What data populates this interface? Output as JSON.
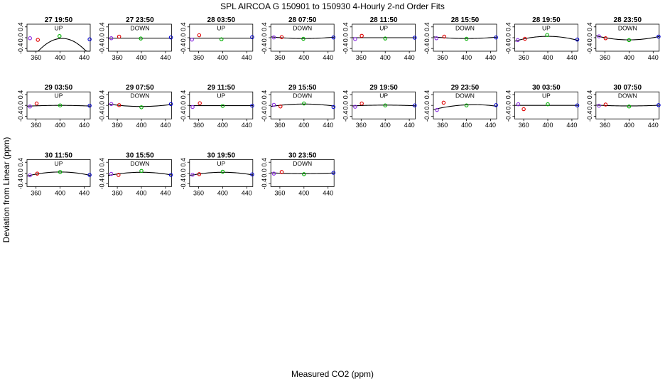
{
  "chart_data": {
    "type": "scatter",
    "title": "SPL   AIRCOA G   150901 to 150930   4-Hourly 2-nd Order Fits",
    "xlabel": "Measured CO2 (ppm)",
    "ylabel": "Deviation from Linear (ppm)",
    "xlim": [
      345,
      450
    ],
    "ylim": [
      -0.5,
      0.5
    ],
    "x_ticks": [
      360,
      400,
      440
    ],
    "y_ticks": [
      -0.4,
      0.0,
      0.4
    ],
    "y_tick_labels": [
      "-0.4",
      "0.0",
      "0.4"
    ],
    "marker_colors": [
      "#8a2be2",
      "#e00000",
      "#00b000",
      "#0000d0"
    ],
    "panels": [
      {
        "title": "27 19:50",
        "direction": "UP",
        "x": [
          350,
          363,
          399,
          449
        ],
        "y": [
          -0.02,
          -0.08,
          0.06,
          -0.06
        ],
        "fit": [
          -0.03,
          0.002,
          -0.0003
        ]
      },
      {
        "title": "27 23:50",
        "direction": "DOWN",
        "x": [
          350,
          363,
          399,
          449
        ],
        "y": [
          -0.02,
          0.04,
          -0.03,
          0.01
        ],
        "fit": [
          -0.02,
          0.0,
          0.0
        ]
      },
      {
        "title": "28 03:50",
        "direction": "UP",
        "x": [
          349,
          361,
          398,
          449
        ],
        "y": [
          -0.07,
          0.09,
          -0.06,
          0.02
        ],
        "fit": [
          -0.02,
          0.0,
          0.0
        ]
      },
      {
        "title": "28 07:50",
        "direction": "DOWN",
        "x": [
          350,
          363,
          399,
          449
        ],
        "y": [
          0.01,
          0.02,
          -0.04,
          0.01
        ],
        "fit": [
          -0.03,
          0.0,
          2e-05
        ]
      },
      {
        "title": "28 11:50",
        "direction": "UP",
        "x": [
          350,
          361,
          400,
          449
        ],
        "y": [
          -0.05,
          0.07,
          -0.03,
          0.0
        ],
        "fit": [
          0.0,
          0.0,
          0.0
        ]
      },
      {
        "title": "28 15:50",
        "direction": "DOWN",
        "x": [
          350,
          363,
          400,
          449
        ],
        "y": [
          -0.02,
          0.04,
          -0.04,
          0.01
        ],
        "fit": [
          -0.03,
          0.0,
          2e-05
        ]
      },
      {
        "title": "28 19:50",
        "direction": "UP",
        "x": [
          350,
          362,
          399,
          449
        ],
        "y": [
          -0.09,
          -0.04,
          0.1,
          -0.07
        ],
        "fit": [
          0.05,
          0.0,
          -6e-05
        ]
      },
      {
        "title": "28 23:50",
        "direction": "DOWN",
        "x": [
          350,
          361,
          400,
          449
        ],
        "y": [
          0.05,
          -0.02,
          -0.09,
          0.04
        ],
        "fit": [
          -0.08,
          0.0,
          5e-05
        ]
      },
      {
        "title": "29 03:50",
        "direction": "UP",
        "x": [
          350,
          361,
          400,
          449
        ],
        "y": [
          -0.04,
          0.07,
          0.0,
          -0.01
        ],
        "fit": [
          0.0,
          0.0,
          -1e-05
        ]
      },
      {
        "title": "29 07:50",
        "direction": "DOWN",
        "x": [
          350,
          363,
          400,
          449
        ],
        "y": [
          0.05,
          0.01,
          -0.07,
          0.05
        ],
        "fit": [
          -0.04,
          0.0,
          3e-05
        ]
      },
      {
        "title": "29 11:50",
        "direction": "UP",
        "x": [
          350,
          362,
          400,
          449
        ],
        "y": [
          -0.06,
          0.08,
          -0.02,
          -0.01
        ],
        "fit": [
          -0.01,
          0.0,
          0.0
        ]
      },
      {
        "title": "29 15:50",
        "direction": "DOWN",
        "x": [
          350,
          361,
          400,
          449
        ],
        "y": [
          0.02,
          -0.04,
          0.07,
          -0.06
        ],
        "fit": [
          0.05,
          0.0,
          -3e-05
        ]
      },
      {
        "title": "29 19:50",
        "direction": "UP",
        "x": [
          350,
          361,
          400,
          449
        ],
        "y": [
          -0.05,
          0.07,
          0.0,
          0.0
        ],
        "fit": [
          0.01,
          0.0,
          -1e-05
        ]
      },
      {
        "title": "29 23:50",
        "direction": "DOWN",
        "x": [
          351,
          362,
          400,
          449
        ],
        "y": [
          -0.17,
          0.1,
          0.0,
          0.01
        ],
        "fit": [
          0.02,
          0.001,
          -4e-05
        ]
      },
      {
        "title": "30 03:50",
        "direction": "UP",
        "x": [
          351,
          360,
          400,
          449
        ],
        "y": [
          0.04,
          -0.14,
          0.04,
          0.0
        ],
        "fit": [
          0.0,
          0.0,
          0.0
        ]
      },
      {
        "title": "30 07:50",
        "direction": "DOWN",
        "x": [
          350,
          361,
          400,
          449
        ],
        "y": [
          -0.01,
          0.03,
          -0.04,
          0.01
        ],
        "fit": [
          -0.02,
          0.0,
          1e-05
        ]
      },
      {
        "title": "30 11:50",
        "direction": "UP",
        "x": [
          350,
          362,
          400,
          449
        ],
        "y": [
          -0.08,
          -0.02,
          0.04,
          -0.07
        ],
        "fit": [
          0.04,
          0.0,
          -5e-05
        ]
      },
      {
        "title": "30 15:50",
        "direction": "DOWN",
        "x": [
          350,
          362,
          400,
          449
        ],
        "y": [
          -0.03,
          -0.07,
          0.08,
          -0.07
        ],
        "fit": [
          0.03,
          0.0,
          -4e-05
        ]
      },
      {
        "title": "30 19:50",
        "direction": "UP",
        "x": [
          350,
          361,
          400,
          449
        ],
        "y": [
          -0.06,
          -0.04,
          0.05,
          -0.05
        ],
        "fit": [
          0.03,
          0.0,
          -4e-05
        ]
      },
      {
        "title": "30 23:50",
        "direction": "DOWN",
        "x": [
          350,
          363,
          400,
          449
        ],
        "y": [
          -0.02,
          0.04,
          -0.04,
          0.01
        ],
        "fit": [
          -0.02,
          0.0,
          1e-05
        ]
      }
    ]
  }
}
